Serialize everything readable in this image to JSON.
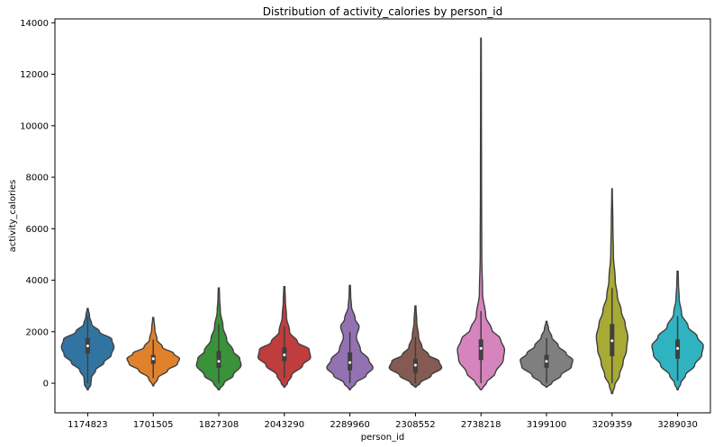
{
  "chart_data": {
    "type": "violin",
    "title": "Distribution of activity_calories by person_id",
    "xlabel": "person_id",
    "ylabel": "activity_calories",
    "ylim": [
      -1150,
      14150
    ],
    "yticks": [
      0,
      2000,
      4000,
      6000,
      8000,
      10000,
      12000,
      14000
    ],
    "grid": false,
    "categories": [
      "1174823",
      "1701505",
      "1827308",
      "2043290",
      "2289960",
      "2308552",
      "2738218",
      "3199100",
      "3209359",
      "3289030"
    ],
    "series": [
      {
        "category": "1174823",
        "color": "#3274a1",
        "min": -250,
        "max": 2900,
        "q1": 1150,
        "median": 1450,
        "q3": 1750,
        "wlo": 0,
        "whi": 2600,
        "profile": [
          [
            -250,
            0.02
          ],
          [
            -50,
            0.12
          ],
          [
            200,
            0.14
          ],
          [
            500,
            0.3
          ],
          [
            800,
            0.62
          ],
          [
            1100,
            0.9
          ],
          [
            1400,
            1.0
          ],
          [
            1700,
            0.92
          ],
          [
            2000,
            0.45
          ],
          [
            2300,
            0.15
          ],
          [
            2600,
            0.07
          ],
          [
            2900,
            0.02
          ]
        ]
      },
      {
        "category": "1701505",
        "color": "#e1812c",
        "min": -100,
        "max": 2550,
        "q1": 750,
        "median": 950,
        "q3": 1100,
        "wlo": 200,
        "whi": 1700,
        "profile": [
          [
            -100,
            0.02
          ],
          [
            200,
            0.18
          ],
          [
            500,
            0.55
          ],
          [
            750,
            0.92
          ],
          [
            950,
            1.0
          ],
          [
            1150,
            0.78
          ],
          [
            1400,
            0.35
          ],
          [
            1700,
            0.14
          ],
          [
            2100,
            0.06
          ],
          [
            2550,
            0.02
          ]
        ]
      },
      {
        "category": "1827308",
        "color": "#3a923a",
        "min": -250,
        "max": 3700,
        "q1": 600,
        "median": 850,
        "q3": 1250,
        "wlo": 0,
        "whi": 2300,
        "profile": [
          [
            -250,
            0.03
          ],
          [
            0,
            0.2
          ],
          [
            300,
            0.55
          ],
          [
            700,
            0.85
          ],
          [
            950,
            0.8
          ],
          [
            1250,
            0.55
          ],
          [
            1700,
            0.3
          ],
          [
            2200,
            0.16
          ],
          [
            2800,
            0.06
          ],
          [
            3300,
            0.03
          ],
          [
            3700,
            0.02
          ]
        ]
      },
      {
        "category": "2043290",
        "color": "#c03d3e",
        "min": -150,
        "max": 3750,
        "q1": 850,
        "median": 1100,
        "q3": 1400,
        "wlo": 200,
        "whi": 2200,
        "profile": [
          [
            -150,
            0.02
          ],
          [
            0,
            0.12
          ],
          [
            300,
            0.28
          ],
          [
            700,
            0.7
          ],
          [
            1000,
            1.0
          ],
          [
            1300,
            0.95
          ],
          [
            1600,
            0.5
          ],
          [
            2000,
            0.2
          ],
          [
            2600,
            0.08
          ],
          [
            3200,
            0.04
          ],
          [
            3750,
            0.02
          ]
        ]
      },
      {
        "category": "2289960",
        "color": "#9372b2",
        "min": -250,
        "max": 3800,
        "q1": 500,
        "median": 800,
        "q3": 1200,
        "wlo": 0,
        "whi": 2000,
        "profile": [
          [
            -250,
            0.02
          ],
          [
            0,
            0.22
          ],
          [
            300,
            0.62
          ],
          [
            600,
            0.88
          ],
          [
            900,
            0.72
          ],
          [
            1300,
            0.4
          ],
          [
            1800,
            0.25
          ],
          [
            2200,
            0.35
          ],
          [
            2500,
            0.2
          ],
          [
            3000,
            0.06
          ],
          [
            3400,
            0.03
          ],
          [
            3800,
            0.02
          ]
        ]
      },
      {
        "category": "2308552",
        "color": "#845b53",
        "min": -150,
        "max": 3000,
        "q1": 400,
        "median": 700,
        "q3": 950,
        "wlo": 0,
        "whi": 1800,
        "profile": [
          [
            -150,
            0.02
          ],
          [
            0,
            0.18
          ],
          [
            300,
            0.6
          ],
          [
            600,
            1.0
          ],
          [
            850,
            0.9
          ],
          [
            1100,
            0.5
          ],
          [
            1400,
            0.25
          ],
          [
            1800,
            0.12
          ],
          [
            2400,
            0.05
          ],
          [
            3000,
            0.02
          ]
        ]
      },
      {
        "category": "2738218",
        "color": "#d684bd",
        "min": -250,
        "max": 13400,
        "q1": 900,
        "median": 1350,
        "q3": 1700,
        "wlo": 0,
        "whi": 2800,
        "profile": [
          [
            -250,
            0.02
          ],
          [
            0,
            0.2
          ],
          [
            400,
            0.55
          ],
          [
            900,
            0.85
          ],
          [
            1300,
            0.9
          ],
          [
            1700,
            0.75
          ],
          [
            2100,
            0.4
          ],
          [
            2600,
            0.18
          ],
          [
            3500,
            0.06
          ],
          [
            5000,
            0.03
          ],
          [
            8000,
            0.02
          ],
          [
            11000,
            0.015
          ],
          [
            13400,
            0.01
          ]
        ]
      },
      {
        "category": "3199100",
        "color": "#7f7f7f",
        "min": -150,
        "max": 2400,
        "q1": 600,
        "median": 850,
        "q3": 1100,
        "wlo": 0,
        "whi": 1750,
        "profile": [
          [
            -150,
            0.02
          ],
          [
            0,
            0.2
          ],
          [
            300,
            0.55
          ],
          [
            650,
            0.95
          ],
          [
            900,
            1.0
          ],
          [
            1150,
            0.75
          ],
          [
            1450,
            0.45
          ],
          [
            1800,
            0.2
          ],
          [
            2100,
            0.08
          ],
          [
            2400,
            0.02
          ]
        ]
      },
      {
        "category": "3209359",
        "color": "#a9aa35",
        "min": -400,
        "max": 7550,
        "q1": 1050,
        "median": 1650,
        "q3": 2300,
        "wlo": 0,
        "whi": 3700,
        "profile": [
          [
            -400,
            0.02
          ],
          [
            -100,
            0.1
          ],
          [
            300,
            0.28
          ],
          [
            800,
            0.42
          ],
          [
            1300,
            0.55
          ],
          [
            1800,
            0.6
          ],
          [
            2300,
            0.5
          ],
          [
            2800,
            0.35
          ],
          [
            3400,
            0.2
          ],
          [
            4000,
            0.12
          ],
          [
            5000,
            0.05
          ],
          [
            6200,
            0.03
          ],
          [
            7550,
            0.01
          ]
        ]
      },
      {
        "category": "3289030",
        "color": "#2fb3c1",
        "min": -250,
        "max": 4350,
        "q1": 950,
        "median": 1350,
        "q3": 1700,
        "wlo": 100,
        "whi": 2600,
        "profile": [
          [
            -250,
            0.02
          ],
          [
            0,
            0.12
          ],
          [
            300,
            0.3
          ],
          [
            700,
            0.65
          ],
          [
            1100,
            0.92
          ],
          [
            1450,
            0.98
          ],
          [
            1800,
            0.75
          ],
          [
            2200,
            0.4
          ],
          [
            2700,
            0.15
          ],
          [
            3300,
            0.06
          ],
          [
            3900,
            0.03
          ],
          [
            4350,
            0.02
          ]
        ]
      }
    ]
  }
}
